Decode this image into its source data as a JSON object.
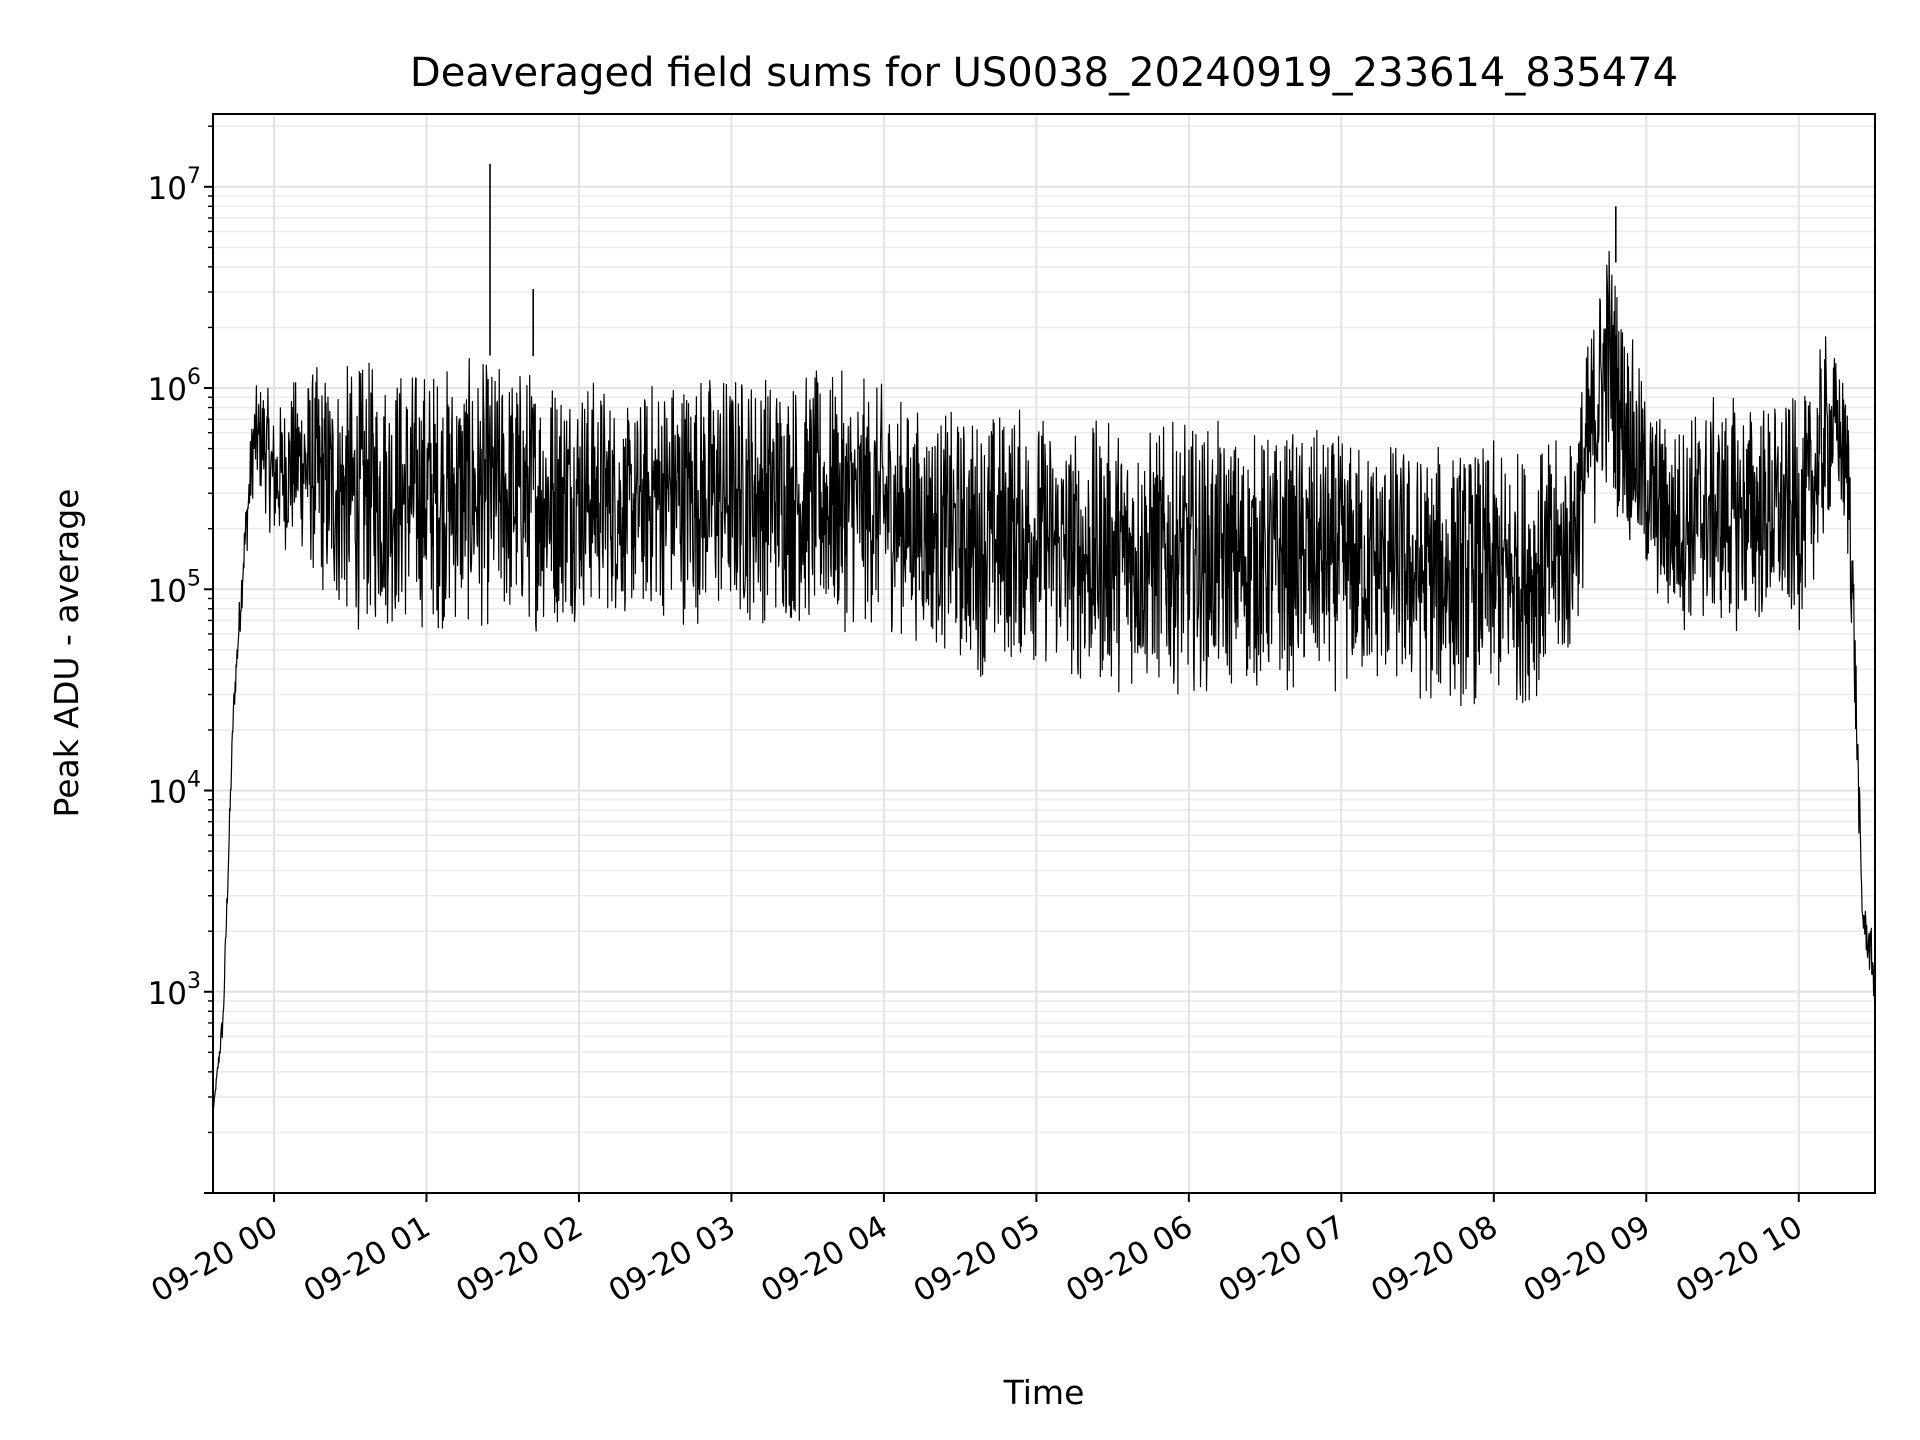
{
  "chart_data": {
    "type": "line",
    "title": "Deaveraged field sums for US0038_20240919_233614_835474",
    "xlabel": "Time",
    "ylabel": "Peak ADU - average",
    "y_scale": "log",
    "ylim": [
      100,
      23000000
    ],
    "xlim": [
      "2024-09-19 23:36",
      "2024-09-20 10:30"
    ],
    "grid": true,
    "line_color": "#000000",
    "x_tick_labels": [
      "09-20 00",
      "09-20 01",
      "09-20 02",
      "09-20 03",
      "09-20 04",
      "09-20 05",
      "09-20 06",
      "09-20 07",
      "09-20 08",
      "09-20 09",
      "09-20 10"
    ],
    "y_tick_labels": [
      {
        "base": "10",
        "exp": "3"
      },
      {
        "base": "10",
        "exp": "4"
      },
      {
        "base": "10",
        "exp": "5"
      },
      {
        "base": "10",
        "exp": "6"
      },
      {
        "base": "10",
        "exp": "7"
      }
    ],
    "series": [
      {
        "envelope": {
          "x": [
            "2024-09-19 23:36",
            "2024-09-19 23:40",
            "2024-09-19 23:44",
            "2024-09-19 23:48",
            "2024-09-19 23:52",
            "2024-09-19 23:56",
            "2024-09-20 00:00",
            "2024-09-20 00:10",
            "2024-09-20 00:20",
            "2024-09-20 00:30",
            "2024-09-20 00:40",
            "2024-09-20 00:50",
            "2024-09-20 01:00",
            "2024-09-20 01:10",
            "2024-09-20 01:20",
            "2024-09-20 01:30",
            "2024-09-20 01:40",
            "2024-09-20 01:50",
            "2024-09-20 02:00",
            "2024-09-20 02:10",
            "2024-09-20 02:20",
            "2024-09-20 02:30",
            "2024-09-20 02:40",
            "2024-09-20 02:50",
            "2024-09-20 03:00",
            "2024-09-20 03:10",
            "2024-09-20 03:20",
            "2024-09-20 03:30",
            "2024-09-20 03:40",
            "2024-09-20 03:50",
            "2024-09-20 04:00",
            "2024-09-20 04:10",
            "2024-09-20 04:20",
            "2024-09-20 04:30",
            "2024-09-20 04:40",
            "2024-09-20 04:50",
            "2024-09-20 05:00",
            "2024-09-20 05:10",
            "2024-09-20 05:20",
            "2024-09-20 05:30",
            "2024-09-20 05:40",
            "2024-09-20 05:50",
            "2024-09-20 06:00",
            "2024-09-20 06:10",
            "2024-09-20 06:20",
            "2024-09-20 06:30",
            "2024-09-20 06:40",
            "2024-09-20 06:50",
            "2024-09-20 07:00",
            "2024-09-20 07:10",
            "2024-09-20 07:20",
            "2024-09-20 07:30",
            "2024-09-20 07:40",
            "2024-09-20 07:50",
            "2024-09-20 08:00",
            "2024-09-20 08:10",
            "2024-09-20 08:20",
            "2024-09-20 08:30",
            "2024-09-20 08:40",
            "2024-09-20 08:45",
            "2024-09-20 08:50",
            "2024-09-20 09:00",
            "2024-09-20 09:10",
            "2024-09-20 09:20",
            "2024-09-20 09:30",
            "2024-09-20 09:40",
            "2024-09-20 09:50",
            "2024-09-20 10:00",
            "2024-09-20 10:05",
            "2024-09-20 10:10",
            "2024-09-20 10:15",
            "2024-09-20 10:20",
            "2024-09-20 10:25",
            "2024-09-20 10:30"
          ],
          "high": [
            250,
            900,
            30000,
            200000,
            1000000,
            1200000,
            800000,
            1300000,
            1400000,
            1400000,
            1450000,
            1450000,
            1450000,
            1450000,
            1450000,
            1450000,
            1450000,
            1400000,
            1300000,
            1200000,
            800000,
            1300000,
            1350000,
            1350000,
            1350000,
            1350000,
            1350000,
            1300000,
            1250000,
            1200000,
            1100000,
            900000,
            800000,
            800000,
            850000,
            900000,
            850000,
            700000,
            700000,
            750000,
            700000,
            700000,
            700000,
            700000,
            650000,
            650000,
            650000,
            650000,
            600000,
            600000,
            600000,
            550000,
            550000,
            550000,
            550000,
            550000,
            560000,
            600000,
            3000000,
            7000000,
            3000000,
            1000000,
            700000,
            900000,
            950000,
            950000,
            950000,
            900000,
            1000000,
            2000000,
            1500000,
            1000000,
            3000,
            1800
          ],
          "low": [
            250,
            600,
            20000,
            100000,
            300000,
            250000,
            150000,
            150000,
            80000,
            60000,
            60000,
            60000,
            60000,
            60000,
            60000,
            60000,
            60000,
            60000,
            70000,
            70000,
            70000,
            70000,
            65000,
            65000,
            65000,
            65000,
            65000,
            60000,
            60000,
            60000,
            60000,
            55000,
            50000,
            40000,
            35000,
            40000,
            40000,
            35000,
            30000,
            30000,
            30000,
            30000,
            30000,
            30000,
            30000,
            30000,
            30000,
            30000,
            30000,
            30000,
            30000,
            25000,
            25000,
            25000,
            25000,
            25000,
            30000,
            40000,
            200000,
            300000,
            200000,
            100000,
            60000,
            60000,
            60000,
            60000,
            60000,
            60000,
            100000,
            150000,
            300000,
            100000,
            2000,
            800
          ]
        },
        "spikes": [
          {
            "x": "2024-09-20 01:25",
            "y": 13000000
          },
          {
            "x": "2024-09-20 01:42",
            "y": 3100000
          },
          {
            "x": "2024-09-20 08:48",
            "y": 8000000
          }
        ]
      }
    ]
  }
}
